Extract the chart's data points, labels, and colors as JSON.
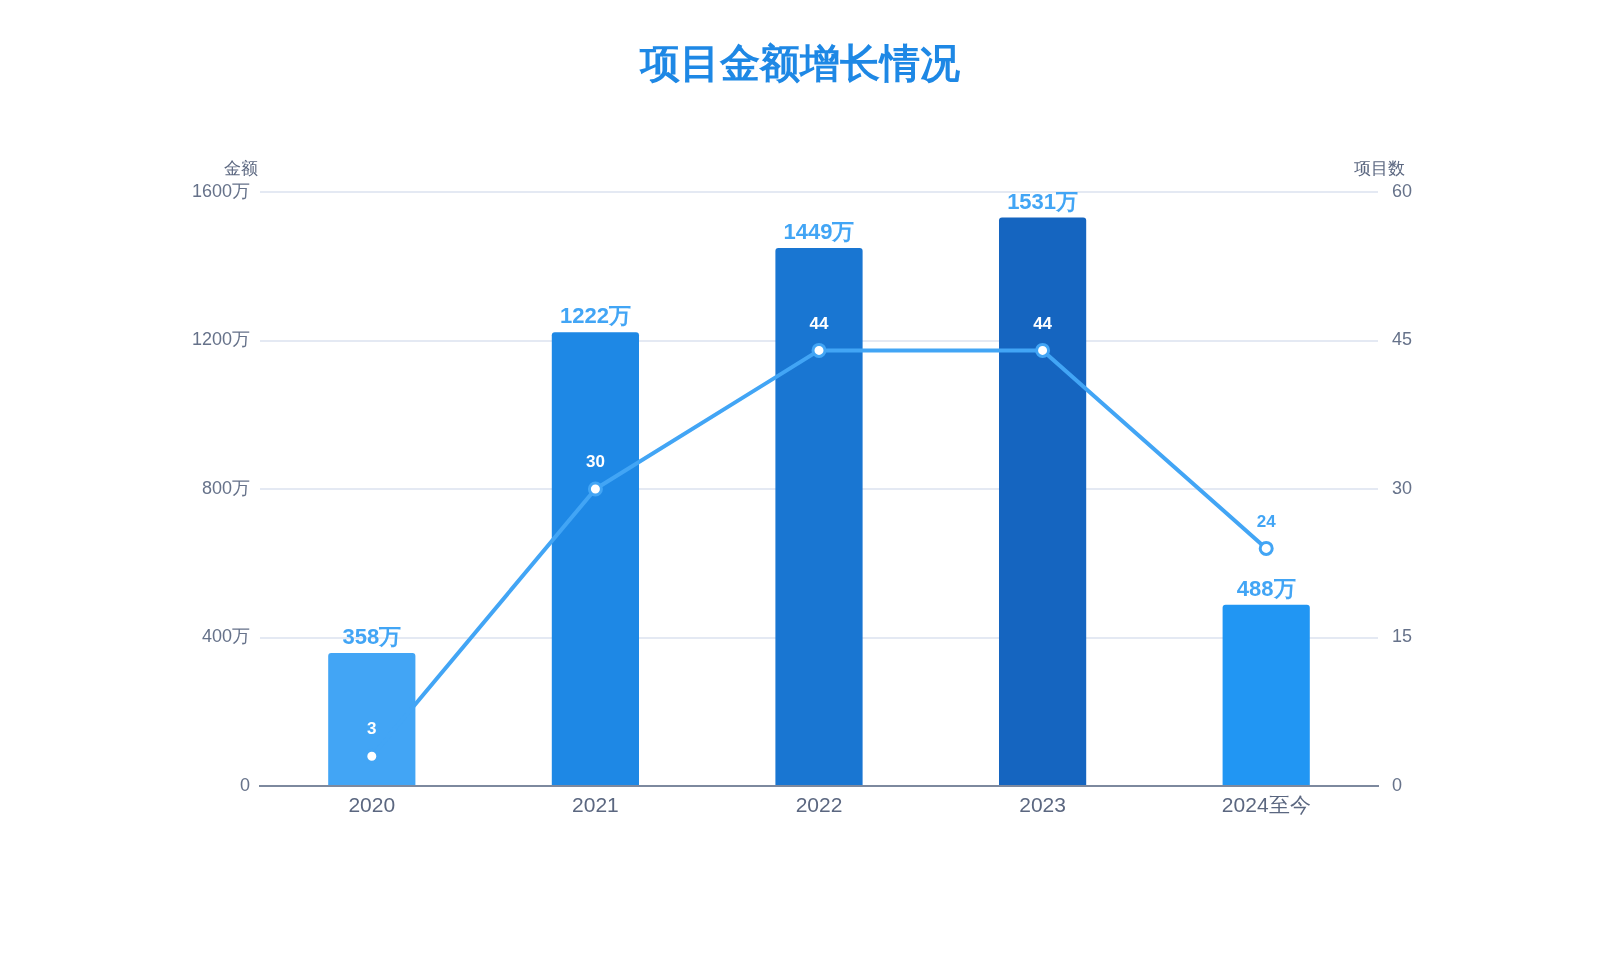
{
  "chart_data": {
    "type": "bar",
    "title": "项目金额增长情况",
    "ylabel": "金额",
    "y2label": "项目数",
    "categories": [
      "2020",
      "2021",
      "2022",
      "2023",
      "2024至今"
    ],
    "series": [
      {
        "colors": [
          "#42a5f5",
          "#1e88e5",
          "#1976d2",
          "#1565c0",
          "#2196f3"
        ],
        "values": [
          358,
          1222,
          1449,
          1531,
          488
        ],
        "value_labels": [
          "358万",
          "1222万",
          "1449万",
          "1531万",
          "488万"
        ]
      },
      {
        "type": "line",
        "axis": "y2",
        "color": "#42a5f5",
        "values": [
          3,
          30,
          44,
          44,
          24
        ],
        "value_labels": [
          "3",
          "30",
          "44",
          "44",
          "24"
        ]
      }
    ],
    "ylim": [
      0,
      1600
    ],
    "yticks": [
      0,
      {
        "value": 400,
        "label": "400万"
      },
      {
        "value": 800,
        "label": "800万"
      },
      {
        "value": 1200,
        "label": "1200万"
      },
      {
        "value": 1600,
        "label": "1600万"
      }
    ],
    "y2lim": [
      0,
      60
    ],
    "y2ticks": [
      0,
      15,
      30,
      45,
      60
    ],
    "grid": "y",
    "legend": false,
    "marker": "circle"
  }
}
